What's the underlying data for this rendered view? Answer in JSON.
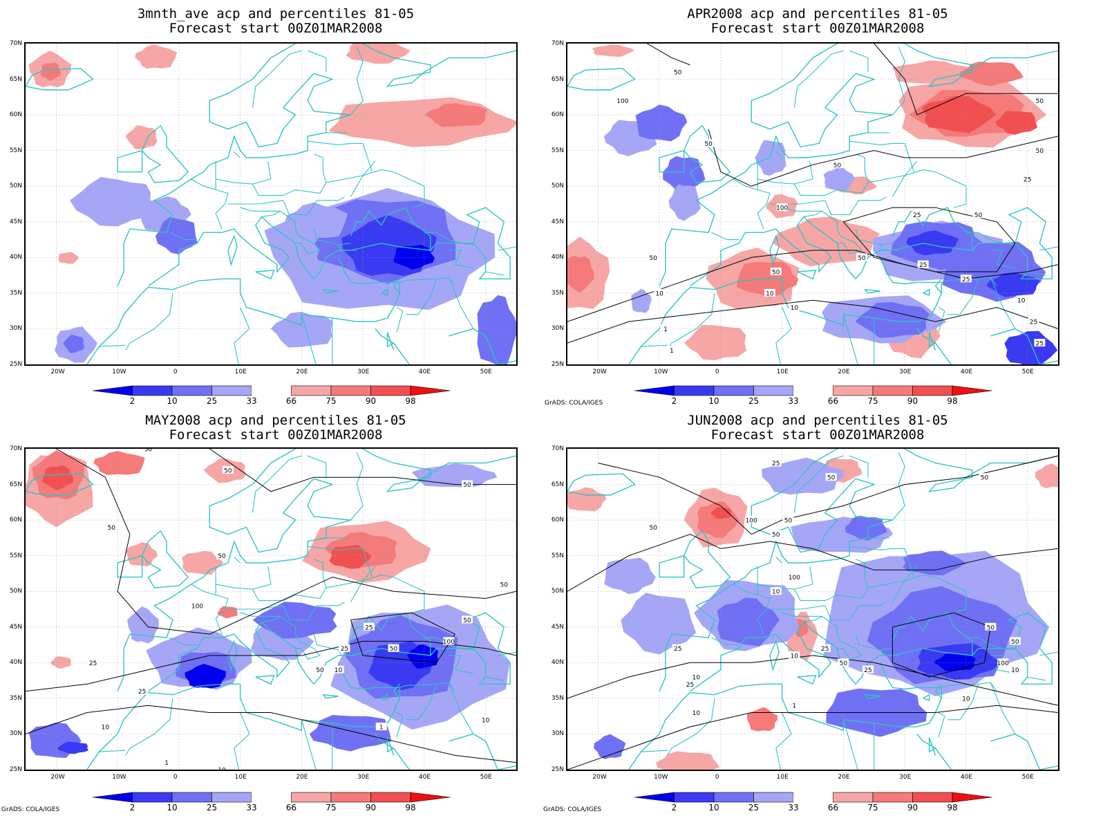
{
  "colors": {
    "coast": "#2ec4c4",
    "blue_dark": "#0000ee",
    "blue_mid": "#3a3af2",
    "blue_light": "#7070f5",
    "blue_pale": "#a6a6f7",
    "red_pale": "#f7a6a6",
    "red_light": "#f57a7a",
    "red_mid": "#f25050",
    "red_dark": "#ee1010",
    "contour": "#000000"
  },
  "axes": {
    "lat_labels": [
      "70N",
      "65N",
      "60N",
      "55N",
      "50N",
      "45N",
      "40N",
      "35N",
      "30N",
      "25N"
    ],
    "lon_labels": [
      "20W",
      "10W",
      "0",
      "10E",
      "20E",
      "30E",
      "40E",
      "50E"
    ]
  },
  "colorbar": {
    "labels": [
      "2",
      "10",
      "25",
      "33",
      "66",
      "75",
      "90",
      "98"
    ]
  },
  "credit": "GrADS: COLA/IGES",
  "panels": [
    {
      "title1": "3mnth_ave acp and percentiles 81-05",
      "title2": "Forecast start 00Z01MAR2008",
      "show_credit": false,
      "contour_labels": []
    },
    {
      "title1": "APR2008 acp and percentiles 81-05",
      "title2": "Forecast start 00Z01MAR2008",
      "show_credit": true,
      "contour_labels": [
        "50",
        "100",
        "50",
        "50",
        "50",
        "100",
        "50",
        "25",
        "25",
        "50",
        "50",
        "50",
        "25",
        "10",
        "10",
        "25",
        "10",
        "1",
        "1",
        "25",
        "10",
        "50",
        "25"
      ]
    },
    {
      "title1": "MAY2008 acp and percentiles 81-05",
      "title2": "Forecast start 00Z01MAR2008",
      "show_credit": true,
      "contour_labels": [
        "50",
        "50",
        "50",
        "50",
        "50",
        "100",
        "50",
        "25",
        "25",
        "100",
        "50",
        "50",
        "25",
        "10",
        "1",
        "25",
        "10",
        "1",
        "10",
        "50",
        "10"
      ]
    },
    {
      "title1": "JUN2008 acp and percentiles 81-05",
      "title2": "Forecast start 00Z01MAR2008",
      "show_credit": true,
      "contour_labels": [
        "25",
        "50",
        "50",
        "100",
        "50",
        "50",
        "50",
        "100",
        "10",
        "25",
        "50",
        "10",
        "25",
        "10",
        "50",
        "25",
        "50",
        "100",
        "10",
        "10",
        "25",
        "1",
        "10"
      ]
    }
  ]
}
